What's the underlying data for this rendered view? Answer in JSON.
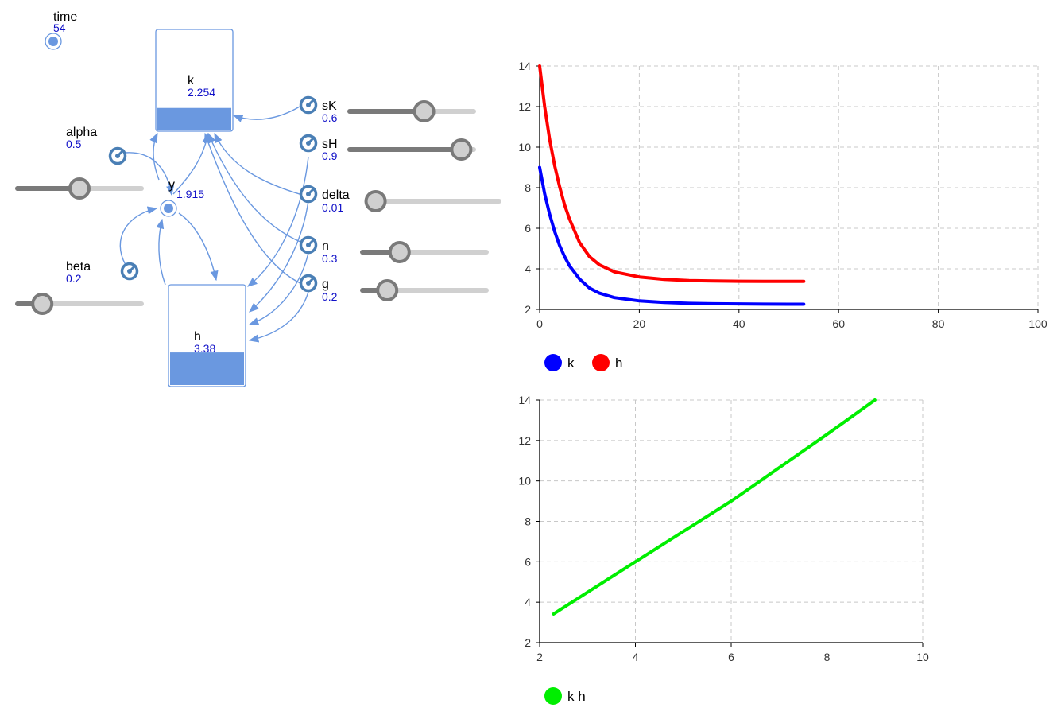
{
  "colors": {
    "link": "#6a98e0",
    "value_text": "#1010c8",
    "param_icon": "#4a7fb5",
    "series_k": "#0000ff",
    "series_h": "#ff0000",
    "series_kh": "#00ee00"
  },
  "model": {
    "time": {
      "label": "time",
      "value": "54"
    },
    "stocks": [
      {
        "id": "k",
        "label": "k",
        "value": "2.254",
        "level": 0.22
      },
      {
        "id": "h",
        "label": "h",
        "value": "3.38",
        "level": 0.33
      }
    ],
    "variable": {
      "label": "y",
      "value": "1.915"
    },
    "params": [
      {
        "id": "sK",
        "label": "sK",
        "value": "0.6",
        "slider": 0.6
      },
      {
        "id": "sH",
        "label": "sH",
        "value": "0.9",
        "slider": 0.9
      },
      {
        "id": "delta",
        "label": "delta",
        "value": "0.01",
        "slider": 0.01
      },
      {
        "id": "n",
        "label": "n",
        "value": "0.3",
        "slider": 0.3
      },
      {
        "id": "g",
        "label": "g",
        "value": "0.2",
        "slider": 0.2
      },
      {
        "id": "alpha",
        "label": "alpha",
        "value": "0.5",
        "slider": 0.5
      },
      {
        "id": "beta",
        "label": "beta",
        "value": "0.2",
        "slider": 0.2
      }
    ],
    "icons": {
      "param": "converter-gauge-icon",
      "time": "clock-dot-icon",
      "variable": "auxiliary-dot-icon"
    }
  },
  "chart_data": [
    {
      "type": "line",
      "xlim": [
        0,
        100
      ],
      "ylim": [
        2,
        14
      ],
      "xticks": [
        0,
        20,
        40,
        60,
        80,
        100
      ],
      "yticks": [
        2,
        4,
        6,
        8,
        10,
        12,
        14
      ],
      "grid": true,
      "legend": "bottom-left",
      "series": [
        {
          "name": "k",
          "color": "#0000ff",
          "x": [
            0,
            1,
            2,
            3,
            4,
            5,
            6,
            8,
            10,
            12,
            15,
            20,
            25,
            30,
            35,
            40,
            45,
            50,
            53
          ],
          "y": [
            9.0,
            7.7,
            6.7,
            5.85,
            5.15,
            4.6,
            4.15,
            3.5,
            3.05,
            2.8,
            2.58,
            2.42,
            2.34,
            2.3,
            2.28,
            2.27,
            2.26,
            2.255,
            2.254
          ]
        },
        {
          "name": "h",
          "color": "#ff0000",
          "x": [
            0,
            1,
            2,
            3,
            4,
            5,
            6,
            8,
            10,
            12,
            15,
            20,
            25,
            30,
            35,
            40,
            45,
            50,
            53
          ],
          "y": [
            14.0,
            12.0,
            10.4,
            9.1,
            8.05,
            7.15,
            6.45,
            5.3,
            4.6,
            4.2,
            3.85,
            3.6,
            3.48,
            3.42,
            3.4,
            3.39,
            3.385,
            3.382,
            3.38
          ]
        }
      ]
    },
    {
      "type": "line",
      "xlim": [
        2,
        10
      ],
      "ylim": [
        2,
        14
      ],
      "xticks": [
        2,
        4,
        6,
        8,
        10
      ],
      "yticks": [
        2,
        4,
        6,
        8,
        10,
        12,
        14
      ],
      "grid": true,
      "legend": "bottom-left",
      "series": [
        {
          "name": "k h",
          "color": "#00ee00",
          "x": [
            2.29,
            4.0,
            6.0,
            8.0,
            9.0
          ],
          "y": [
            3.42,
            6.0,
            9.0,
            12.3,
            14.0
          ]
        }
      ]
    }
  ]
}
